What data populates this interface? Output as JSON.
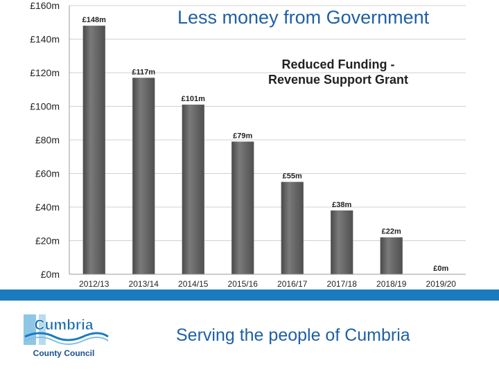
{
  "slide": {
    "heading": "Less money from Government",
    "footer_text": "Serving the people of Cumbria"
  },
  "logo": {
    "name_line1": "Cumbria",
    "name_line2": "County Council"
  },
  "colors": {
    "accent_blue": "#1a7bbf",
    "heading_blue": "#1f5fa6",
    "bar_fill": "#595959",
    "bar_highlight": "#8a8a8a",
    "gridline": "#d0d0d0"
  },
  "chart_data": {
    "type": "bar",
    "title_line1": "Reduced Funding -",
    "title_line2": "Revenue Support Grant",
    "categories": [
      "2012/13",
      "2013/14",
      "2014/15",
      "2015/16",
      "2016/17",
      "2017/18",
      "2018/19",
      "2019/20"
    ],
    "values": [
      148,
      117,
      101,
      79,
      55,
      38,
      22,
      0
    ],
    "data_labels": [
      "£148m",
      "£117m",
      "£101m",
      "£79m",
      "£55m",
      "£38m",
      "£22m",
      "£0m"
    ],
    "y_ticks": [
      0,
      20,
      40,
      60,
      80,
      100,
      120,
      140,
      160
    ],
    "y_tick_labels": [
      "£0m",
      "£20m",
      "£40m",
      "£60m",
      "£80m",
      "£100m",
      "£120m",
      "£140m",
      "£160m"
    ],
    "ylim": [
      0,
      160
    ],
    "grid": true,
    "xlabel": "",
    "ylabel": ""
  }
}
